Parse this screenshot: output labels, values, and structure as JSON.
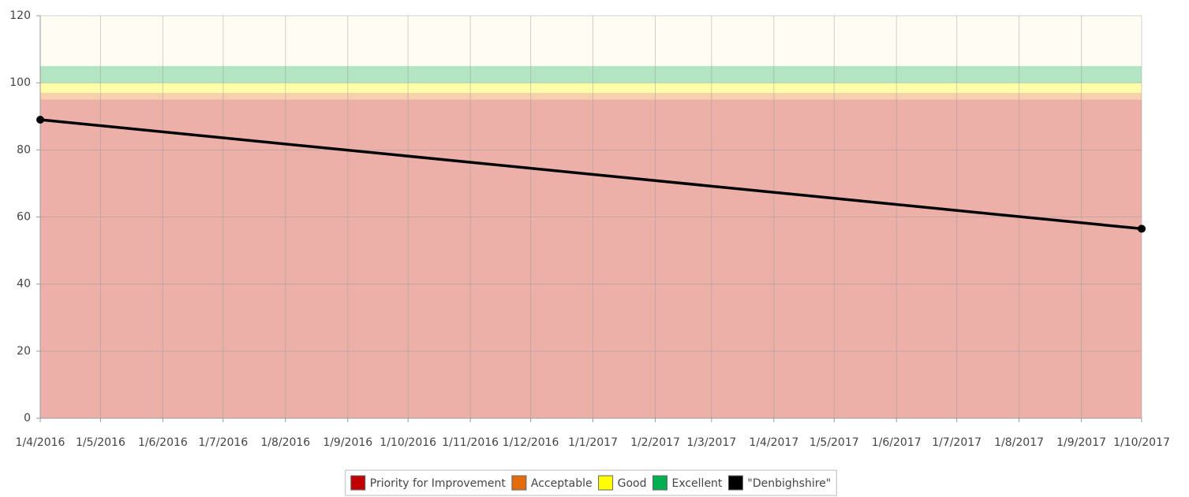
{
  "chart_data": {
    "type": "line",
    "xlim": [
      "1/4/2016",
      "1/10/2017"
    ],
    "xticks": [
      "1/4/2016",
      "1/5/2016",
      "1/6/2016",
      "1/7/2016",
      "1/8/2016",
      "1/9/2016",
      "1/10/2016",
      "1/11/2016",
      "1/12/2016",
      "1/1/2017",
      "1/2/2017",
      "1/3/2017",
      "1/4/2017",
      "1/5/2017",
      "1/6/2017",
      "1/7/2017",
      "1/8/2017",
      "1/9/2017",
      "1/10/2017"
    ],
    "ylim": [
      0,
      120
    ],
    "yticks": [
      0,
      20,
      40,
      60,
      80,
      100,
      120
    ],
    "grid": true,
    "background": "#fffcf3",
    "bands": [
      {
        "name": "Priority for Improvement",
        "color": "#c00000",
        "from": 0,
        "to": 95
      },
      {
        "name": "Acceptable",
        "color": "#e46c0a",
        "from": 95,
        "to": 97
      },
      {
        "name": "Good",
        "color": "#ffff00",
        "from": 97,
        "to": 100
      },
      {
        "name": "Excellent",
        "color": "#00b050",
        "from": 100,
        "to": 105
      }
    ],
    "series": [
      {
        "name": "\"Denbighshire\"",
        "color": "#000000",
        "x": [
          "1/4/2016",
          "1/10/2017"
        ],
        "values": [
          89,
          56.5
        ]
      }
    ],
    "legend": "bottom"
  }
}
